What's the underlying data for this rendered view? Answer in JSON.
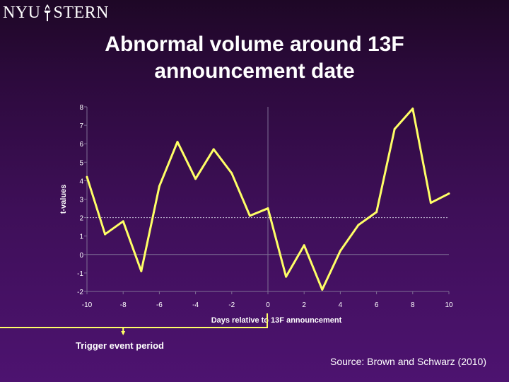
{
  "slide": {
    "logo": {
      "left": "NYU",
      "right": "STERN"
    },
    "title": "Abnormal volume around 13F announcement date",
    "source": "Source: Brown and Schwarz (2010)",
    "trigger_label": "Trigger event period"
  },
  "colors": {
    "line": "#ffff66",
    "axis": "#7f6f95",
    "tick_text": "#ffffff",
    "threshold": "#c8c0d8",
    "bracket": "#ffff66"
  },
  "chart_data": {
    "type": "line",
    "title": "",
    "xlabel": "Days relative to 13F announcement",
    "ylabel": "t-values",
    "xlim": [
      -10,
      10
    ],
    "ylim": [
      -2,
      8
    ],
    "x_ticks": [
      -10,
      -8,
      -6,
      -4,
      -2,
      0,
      2,
      4,
      6,
      8,
      10
    ],
    "y_ticks": [
      -2,
      -1,
      0,
      1,
      2,
      3,
      4,
      5,
      6,
      7,
      8
    ],
    "grid": false,
    "reference_lines": {
      "vertical_x": 0,
      "horizontal_y": 2.0
    },
    "series": [
      {
        "x": [
          -10,
          -9,
          -8,
          -7,
          -6,
          -5,
          -4,
          -3,
          -2,
          -1,
          0,
          1,
          2,
          3,
          4,
          5,
          6,
          7,
          8,
          9,
          10
        ],
        "values": [
          4.2,
          1.1,
          1.8,
          -0.9,
          3.7,
          6.1,
          4.1,
          5.7,
          4.4,
          2.1,
          2.5,
          -1.2,
          0.5,
          -1.9,
          0.2,
          1.6,
          2.3,
          6.8,
          7.9,
          2.8,
          3.3
        ]
      }
    ]
  }
}
